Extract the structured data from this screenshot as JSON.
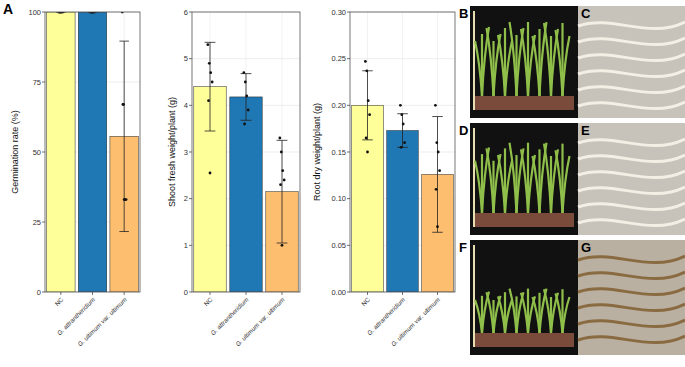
{
  "chart_data": [
    {
      "type": "bar",
      "panel": "A",
      "y_label": "Germination rate (%)",
      "categories": [
        "NC",
        "G. attrantheridium",
        "G. ultimum var. ultimum"
      ],
      "values": [
        100,
        100,
        55.6
      ],
      "errors": [
        0,
        0,
        34
      ],
      "points": [
        [
          100,
          100,
          100,
          100,
          100,
          100
        ],
        [
          100,
          100,
          100,
          100,
          100,
          100
        ],
        [
          100,
          67,
          33,
          33,
          67,
          33
        ]
      ],
      "colors": [
        "#ffff99",
        "#1f78b4",
        "#fdbf6f"
      ],
      "ylim": [
        0,
        100
      ],
      "yticks": [
        0,
        25,
        50,
        75,
        100
      ],
      "grid": true
    },
    {
      "type": "bar",
      "y_label": "Shoot fresh weight/plant (g)",
      "categories": [
        "NC",
        "G. attrantheridium",
        "G. ultimum var. ultimum"
      ],
      "values": [
        4.4,
        4.18,
        2.15
      ],
      "errors": [
        0.95,
        0.5,
        1.1
      ],
      "points": [
        [
          5.3,
          4.9,
          4.7,
          4.5,
          4.1,
          2.55
        ],
        [
          4.7,
          4.5,
          4.2,
          3.9,
          3.6
        ],
        [
          3.3,
          3.0,
          2.6,
          2.4,
          2.3,
          1.0
        ]
      ],
      "colors": [
        "#ffff99",
        "#1f78b4",
        "#fdbf6f"
      ],
      "ylim": [
        0,
        6
      ],
      "yticks": [
        0,
        1,
        2,
        3,
        4,
        5,
        6
      ],
      "grid": true
    },
    {
      "type": "bar",
      "y_label": "Root dry weight/plant (g)",
      "categories": [
        "NC",
        "G. attrantheridium",
        "G. ultimum var. ultimum"
      ],
      "values": [
        0.2,
        0.173,
        0.126
      ],
      "errors": [
        0.037,
        0.018,
        0.062
      ],
      "points": [
        [
          0.247,
          0.237,
          0.205,
          0.19,
          0.165,
          0.15
        ],
        [
          0.2,
          0.19,
          0.18,
          0.16,
          0.155
        ],
        [
          0.2,
          0.16,
          0.15,
          0.13,
          0.11,
          0.07
        ]
      ],
      "colors": [
        "#ffff99",
        "#1f78b4",
        "#fdbf6f"
      ],
      "ylim": [
        0,
        0.3
      ],
      "yticks": [
        {
          "value": 0,
          "label": "0.00"
        },
        {
          "value": 0.05,
          "label": "0.05"
        },
        {
          "value": 0.1,
          "label": "0.10"
        },
        {
          "value": 0.15,
          "label": "0.15"
        },
        {
          "value": 0.2,
          "label": "0.20"
        },
        {
          "value": 0.25,
          "label": "0.25"
        },
        {
          "value": 0.3,
          "label": "0.30"
        }
      ],
      "grid": true
    }
  ],
  "photos": [
    {
      "label": "B"
    },
    {
      "label": "C"
    },
    {
      "label": "D"
    },
    {
      "label": "E"
    },
    {
      "label": "F"
    },
    {
      "label": "G"
    }
  ]
}
